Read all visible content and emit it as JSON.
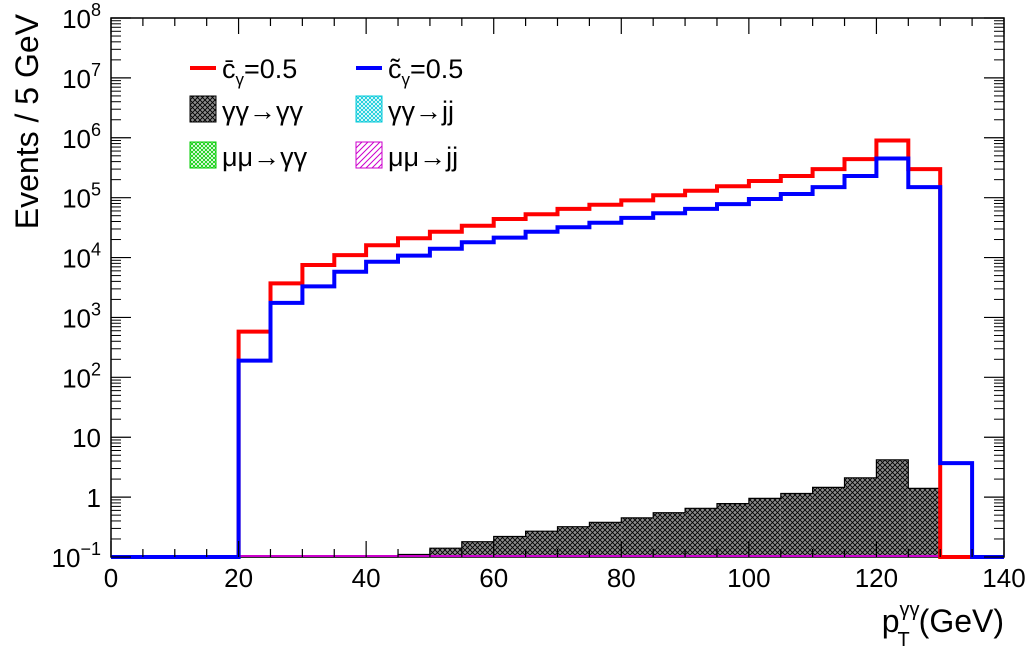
{
  "chart_data": {
    "type": "histogram",
    "xlabel": {
      "base": "p",
      "sup": "γγ",
      "sub": "T",
      "unit": " (GeV)"
    },
    "ylabel": "Events / 5 GeV",
    "xlim": [
      0,
      140
    ],
    "ylim": [
      0.1,
      100000000
    ],
    "yscale": "log",
    "bin_width": 5,
    "x_ticks": [
      0,
      20,
      40,
      60,
      80,
      100,
      120,
      140
    ],
    "y_ticks": [
      {
        "value": 0.1,
        "label": "10",
        "sup": "−1"
      },
      {
        "value": 1,
        "label": "1",
        "sup": ""
      },
      {
        "value": 10,
        "label": "10",
        "sup": ""
      },
      {
        "value": 100,
        "label": "10",
        "sup": "2"
      },
      {
        "value": 1000,
        "label": "10",
        "sup": "3"
      },
      {
        "value": 10000,
        "label": "10",
        "sup": "4"
      },
      {
        "value": 100000,
        "label": "10",
        "sup": "5"
      },
      {
        "value": 1000000,
        "label": "10",
        "sup": "6"
      },
      {
        "value": 10000000,
        "label": "10",
        "sup": "7"
      },
      {
        "value": 100000000,
        "label": "10",
        "sup": "8"
      }
    ],
    "series": [
      {
        "name": "c̄γ=0.5",
        "legend": {
          "accent": "c̄",
          "sub": "γ",
          "rest": "=0.5"
        },
        "style": "line",
        "color": "#ff0000",
        "bin_edges": [
          0,
          5,
          10,
          15,
          20,
          25,
          30,
          35,
          40,
          45,
          50,
          55,
          60,
          65,
          70,
          75,
          80,
          85,
          90,
          95,
          100,
          105,
          110,
          115,
          120,
          125,
          130,
          135,
          140
        ],
        "values": [
          0.1,
          0.1,
          0.1,
          0.1,
          580,
          3700,
          7500,
          11000,
          16000,
          21000,
          27000,
          34000,
          44000,
          53000,
          65000,
          76000,
          90000,
          110000,
          130000,
          155000,
          190000,
          230000,
          300000,
          440000,
          900000,
          300000,
          0.1,
          0.1
        ]
      },
      {
        "name": "c̃γ=0.5",
        "legend": {
          "accent": "c̃",
          "sub": "γ",
          "rest": "=0.5"
        },
        "style": "line",
        "color": "#0000ff",
        "bin_edges": [
          0,
          5,
          10,
          15,
          20,
          25,
          30,
          35,
          40,
          45,
          50,
          55,
          60,
          65,
          70,
          75,
          80,
          85,
          90,
          95,
          100,
          105,
          110,
          115,
          120,
          125,
          130,
          135,
          140
        ],
        "values": [
          0.1,
          0.1,
          0.1,
          0.1,
          190,
          1750,
          3300,
          5800,
          8500,
          10800,
          14000,
          18000,
          21500,
          27000,
          32000,
          38000,
          46000,
          55000,
          65000,
          78000,
          95000,
          115000,
          150000,
          230000,
          450000,
          150000,
          3.7,
          0.1
        ]
      },
      {
        "name": "γγ→γγ",
        "style": "filled-hatch",
        "color": "#000000",
        "fill": "#777777",
        "bin_edges": [
          0,
          5,
          10,
          15,
          20,
          25,
          30,
          35,
          40,
          45,
          50,
          55,
          60,
          65,
          70,
          75,
          80,
          85,
          90,
          95,
          100,
          105,
          110,
          115,
          120,
          125,
          130,
          135,
          140
        ],
        "values": [
          0.1,
          0.1,
          0.1,
          0.1,
          0.1,
          0.1,
          0.1,
          0.1,
          0.1,
          0.11,
          0.14,
          0.18,
          0.22,
          0.27,
          0.32,
          0.38,
          0.45,
          0.55,
          0.65,
          0.78,
          0.95,
          1.15,
          1.45,
          2.1,
          4.2,
          1.4,
          0.1,
          0.1
        ]
      },
      {
        "name": "γγ→jj",
        "style": "hatch",
        "color": "#00c8d8",
        "values": []
      },
      {
        "name": "μμ→γγ",
        "style": "hatch",
        "color": "#00cc00",
        "values": []
      },
      {
        "name": "μμ→jj",
        "style": "hatch",
        "color": "#cc00cc",
        "values": []
      }
    ],
    "legend_position": "top-left",
    "grid": false
  }
}
